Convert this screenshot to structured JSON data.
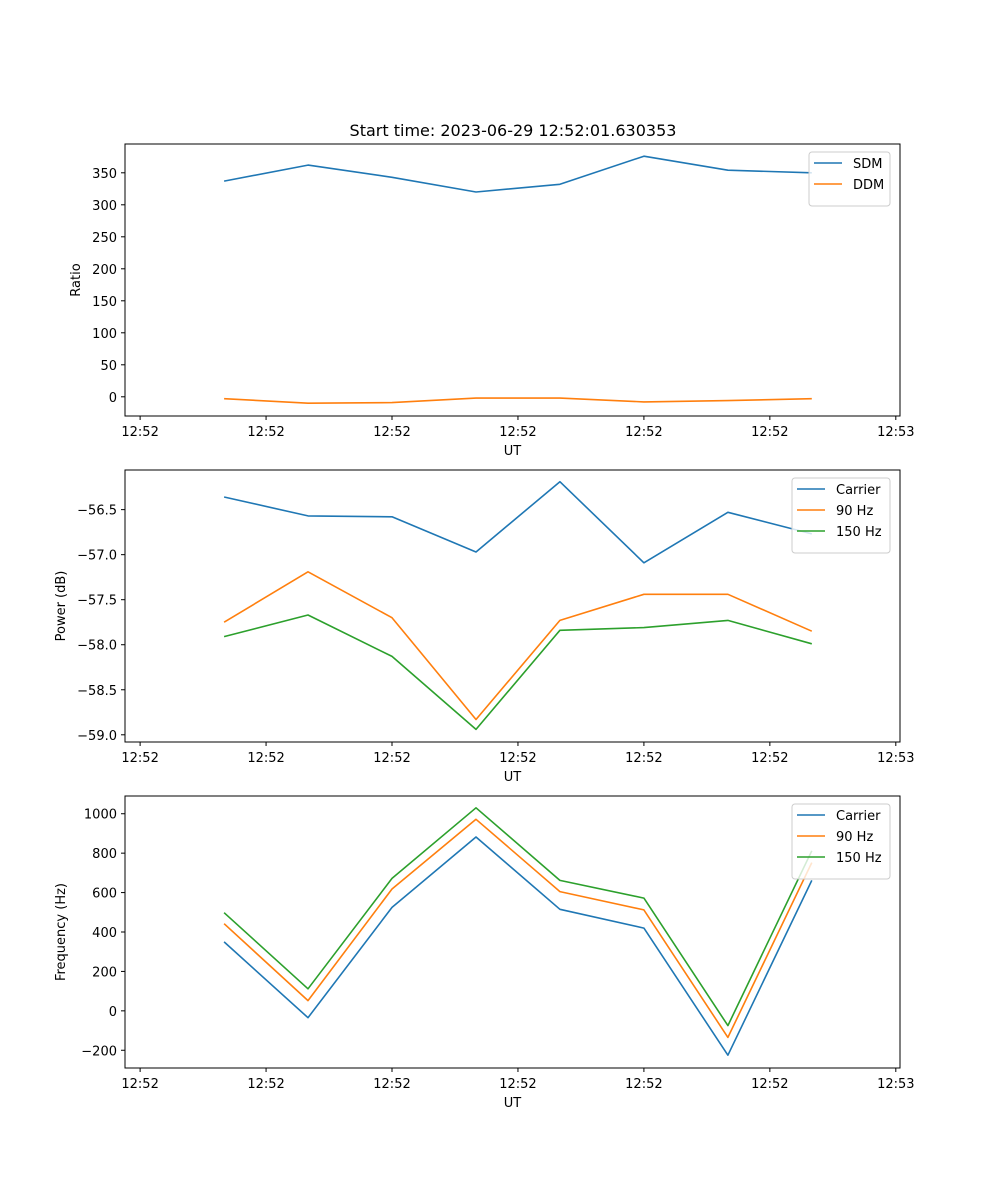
{
  "figure": {
    "title": "Start time: 2023-06-29 12:52:01.630353"
  },
  "chart_data": [
    {
      "type": "line",
      "xlabel": "UT",
      "ylabel": "Ratio",
      "x_tick_labels": [
        "12:52",
        "12:52",
        "12:52",
        "12:52",
        "12:52",
        "12:52",
        "12:53"
      ],
      "y_ticks": [
        0,
        50,
        100,
        150,
        200,
        250,
        300,
        350
      ],
      "ylim": [
        -30,
        395
      ],
      "x": [
        1,
        2,
        3,
        4,
        5,
        6,
        7,
        8
      ],
      "series": [
        {
          "name": "SDM",
          "color": "#1f77b4",
          "values": [
            337,
            362,
            343,
            320,
            332,
            376,
            354,
            350
          ]
        },
        {
          "name": "DDM",
          "color": "#ff7f0e",
          "values": [
            -3,
            -10,
            -9,
            -2,
            -2,
            -8,
            -6,
            -3
          ]
        }
      ],
      "legend": "top-right",
      "grid": false
    },
    {
      "type": "line",
      "xlabel": "UT",
      "ylabel": "Power (dB)",
      "x_tick_labels": [
        "12:52",
        "12:52",
        "12:52",
        "12:52",
        "12:52",
        "12:52",
        "12:53"
      ],
      "y_ticks": [
        -59.0,
        -58.5,
        -58.0,
        -57.5,
        -57.0,
        -56.5
      ],
      "ylim": [
        -59.08,
        -56.06
      ],
      "x": [
        1,
        2,
        3,
        4,
        5,
        6,
        7,
        8
      ],
      "series": [
        {
          "name": "Carrier",
          "color": "#1f77b4",
          "values": [
            -56.36,
            -56.57,
            -56.58,
            -56.97,
            -56.19,
            -57.09,
            -56.53,
            -56.77
          ]
        },
        {
          "name": "90 Hz",
          "color": "#ff7f0e",
          "values": [
            -57.75,
            -57.19,
            -57.7,
            -58.83,
            -57.73,
            -57.44,
            -57.44,
            -57.85
          ]
        },
        {
          "name": "150 Hz",
          "color": "#2ca02c",
          "values": [
            -57.91,
            -57.67,
            -58.13,
            -58.94,
            -57.84,
            -57.81,
            -57.73,
            -57.99
          ]
        }
      ],
      "legend": "top-right",
      "grid": false
    },
    {
      "type": "line",
      "xlabel": "UT",
      "ylabel": "Frequency (Hz)",
      "x_tick_labels": [
        "12:52",
        "12:52",
        "12:52",
        "12:52",
        "12:52",
        "12:52",
        "12:53"
      ],
      "y_ticks": [
        -200,
        0,
        200,
        400,
        600,
        800,
        1000
      ],
      "ylim": [
        -290,
        1090
      ],
      "x": [
        1,
        2,
        3,
        4,
        5,
        6,
        7,
        8
      ],
      "series": [
        {
          "name": "Carrier",
          "color": "#1f77b4",
          "values": [
            350,
            -35,
            525,
            882,
            515,
            420,
            -225,
            662
          ]
        },
        {
          "name": "90 Hz",
          "color": "#ff7f0e",
          "values": [
            442,
            52,
            618,
            972,
            605,
            512,
            -135,
            752
          ]
        },
        {
          "name": "150 Hz",
          "color": "#2ca02c",
          "values": [
            498,
            112,
            672,
            1030,
            662,
            572,
            -75,
            812
          ]
        }
      ],
      "legend": "top-right",
      "grid": false
    }
  ]
}
